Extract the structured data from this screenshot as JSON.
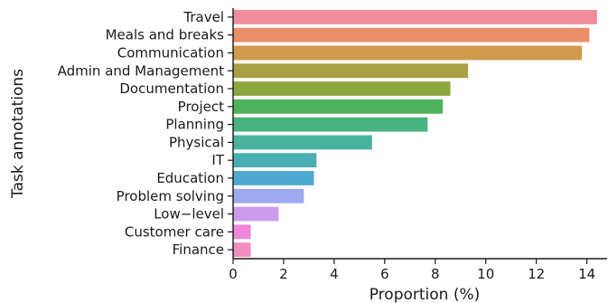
{
  "chart_data": {
    "type": "bar",
    "orientation": "horizontal",
    "xlabel": "Proportion (%)",
    "ylabel": "Task annotations",
    "xlim": [
      0,
      14.8
    ],
    "x_ticks": [
      "0",
      "2",
      "4",
      "6",
      "8",
      "10",
      "12",
      "14"
    ],
    "grid": false,
    "categories": [
      "Travel",
      "Meals and breaks",
      "Communication",
      "Admin and Management",
      "Documentation",
      "Project",
      "Planning",
      "Physical",
      "IT",
      "Education",
      "Problem solving",
      "Low−level",
      "Customer care",
      "Finance"
    ],
    "values": [
      14.4,
      14.1,
      13.8,
      9.3,
      8.6,
      8.3,
      7.7,
      5.5,
      3.3,
      3.2,
      2.8,
      1.8,
      0.7,
      0.7
    ],
    "colors": [
      "#f08c9c",
      "#e9906a",
      "#cf9a4c",
      "#a8a043",
      "#8ea63e",
      "#4cb35a",
      "#48b37f",
      "#49b39e",
      "#49aeb3",
      "#4ca8cf",
      "#9ea9ef",
      "#cc9bea",
      "#ef86dc",
      "#f28dc1"
    ]
  }
}
